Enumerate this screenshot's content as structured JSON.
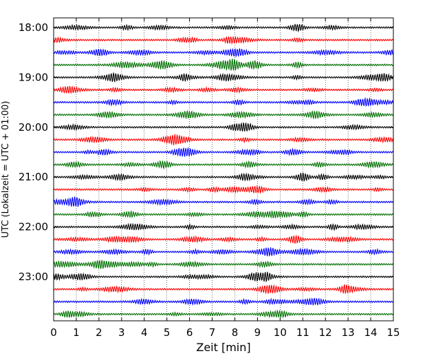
{
  "chart_data": {
    "type": "line",
    "title": "",
    "xlabel": "Zeit  [min]",
    "ylabel": "UTC (Lokalzeit = UTC + 01:00)",
    "xlim": [
      0,
      15
    ],
    "x_ticks": [
      "0",
      "1",
      "2",
      "3",
      "4",
      "5",
      "6",
      "7",
      "8",
      "9",
      "10",
      "11",
      "12",
      "13",
      "14",
      "15"
    ],
    "y_ticks": [
      "18:00",
      "19:00",
      "20:00",
      "21:00",
      "22:00",
      "23:00"
    ],
    "grid": "vertical dotted lines at each minute",
    "legend": "none",
    "trace_interval_min": 15,
    "first_trace": "18:00",
    "traces": [
      {
        "start": "18:00",
        "color": "#000000"
      },
      {
        "start": "18:15",
        "color": "#ff0000"
      },
      {
        "start": "18:30",
        "color": "#0000ff"
      },
      {
        "start": "18:45",
        "color": "#007000"
      },
      {
        "start": "19:00",
        "color": "#000000"
      },
      {
        "start": "19:15",
        "color": "#ff0000"
      },
      {
        "start": "19:30",
        "color": "#0000ff"
      },
      {
        "start": "19:45",
        "color": "#007000"
      },
      {
        "start": "20:00",
        "color": "#000000"
      },
      {
        "start": "20:15",
        "color": "#ff0000"
      },
      {
        "start": "20:30",
        "color": "#0000ff"
      },
      {
        "start": "20:45",
        "color": "#007000"
      },
      {
        "start": "21:00",
        "color": "#000000"
      },
      {
        "start": "21:15",
        "color": "#ff0000"
      },
      {
        "start": "21:30",
        "color": "#0000ff"
      },
      {
        "start": "21:45",
        "color": "#007000"
      },
      {
        "start": "22:00",
        "color": "#000000"
      },
      {
        "start": "22:15",
        "color": "#ff0000"
      },
      {
        "start": "22:30",
        "color": "#0000ff"
      },
      {
        "start": "22:45",
        "color": "#007000"
      },
      {
        "start": "23:00",
        "color": "#000000"
      },
      {
        "start": "23:15",
        "color": "#ff0000"
      },
      {
        "start": "23:30",
        "color": "#0000ff"
      },
      {
        "start": "23:45",
        "color": "#007000"
      }
    ]
  }
}
